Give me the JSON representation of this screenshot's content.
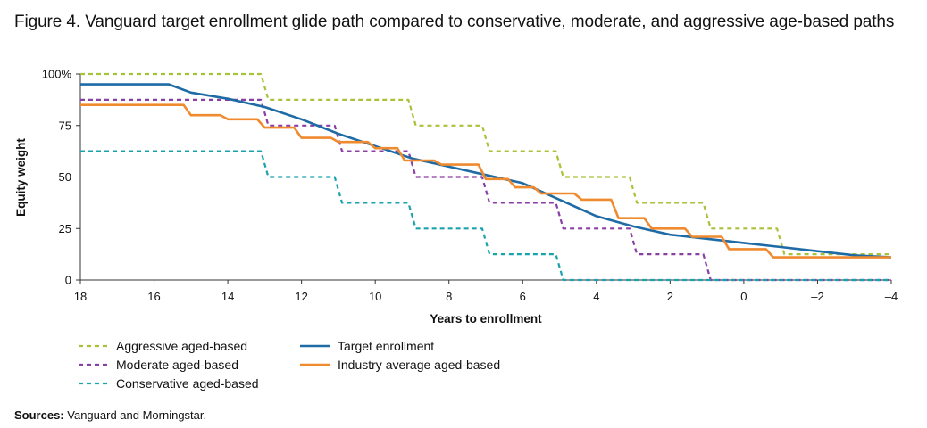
{
  "title": "Figure 4. Vanguard target enrollment glide path compared to conservative, moderate, and aggressive age-based paths",
  "sources": {
    "label": "Sources:",
    "text": " Vanguard and Morningstar."
  },
  "chart_data": {
    "type": "line",
    "xlabel": "Years to enrollment",
    "ylabel": "Equity weight",
    "xlim": [
      18,
      -4
    ],
    "ylim": [
      0,
      100
    ],
    "x_ticks": [
      18,
      16,
      14,
      12,
      10,
      8,
      6,
      4,
      2,
      0,
      -2,
      -4
    ],
    "x_tick_labels": [
      "18",
      "16",
      "14",
      "12",
      "10",
      "8",
      "6",
      "4",
      "2",
      "0",
      "–2",
      "–4"
    ],
    "y_ticks": [
      0,
      25,
      50,
      75,
      100
    ],
    "y_tick_labels": [
      "0",
      "25",
      "50",
      "75",
      "100%"
    ],
    "series": [
      {
        "name": "Aggressive aged-based",
        "color": "#a8c23a",
        "style": "dashed",
        "x": [
          18,
          13.1,
          12.9,
          9.1,
          8.9,
          7.1,
          6.9,
          5.1,
          4.9,
          3.1,
          2.9,
          1.1,
          0.9,
          -0.9,
          -1.1,
          -4
        ],
        "y": [
          100,
          100,
          87.5,
          87.5,
          75,
          75,
          62.5,
          62.5,
          50,
          50,
          37.5,
          37.5,
          25,
          25,
          12.5,
          12.5
        ]
      },
      {
        "name": "Moderate aged-based",
        "color": "#8a3fa5",
        "style": "dashed",
        "x": [
          18,
          13.1,
          12.9,
          11.1,
          10.9,
          9.1,
          8.9,
          7.1,
          6.9,
          5.1,
          4.9,
          3.1,
          2.9,
          1.1,
          0.9,
          -4
        ],
        "y": [
          87.5,
          87.5,
          75,
          75,
          62.5,
          62.5,
          50,
          50,
          37.5,
          37.5,
          25,
          25,
          12.5,
          12.5,
          0,
          0
        ]
      },
      {
        "name": "Conservative aged-based",
        "color": "#1ba3ad",
        "style": "dashed",
        "x": [
          18,
          13.1,
          12.9,
          11.1,
          10.9,
          9.1,
          8.9,
          7.1,
          6.9,
          5.1,
          4.9,
          -4
        ],
        "y": [
          62.5,
          62.5,
          50,
          50,
          37.5,
          37.5,
          25,
          25,
          12.5,
          12.5,
          0,
          0
        ]
      },
      {
        "name": "Target enrollment",
        "color": "#1f6ba5",
        "style": "solid",
        "x": [
          18,
          15.6,
          15,
          14,
          13,
          12,
          11,
          10,
          9,
          8,
          7,
          6,
          5,
          4,
          3,
          2,
          1,
          0,
          -1,
          -2,
          -3,
          -4
        ],
        "y": [
          95,
          95,
          91,
          88,
          84,
          78,
          71,
          65,
          59,
          55,
          51,
          47,
          39,
          31,
          26,
          22,
          20,
          18,
          16,
          14,
          12,
          11
        ]
      },
      {
        "name": "Industry average aged-based",
        "color": "#ef8a2e",
        "style": "solid",
        "x": [
          18,
          15.2,
          15.0,
          14.2,
          14.0,
          13.2,
          13.0,
          12.2,
          12.0,
          11.2,
          11.0,
          10.2,
          10.0,
          9.4,
          9.2,
          8.4,
          8.2,
          7.2,
          7.0,
          6.4,
          6.2,
          5.7,
          5.5,
          4.6,
          4.4,
          3.6,
          3.4,
          2.7,
          2.5,
          1.6,
          1.4,
          0.6,
          0.4,
          -0.6,
          -0.8,
          -4
        ],
        "y": [
          85,
          85,
          80,
          80,
          78,
          78,
          74,
          74,
          69,
          69,
          67,
          67,
          64,
          64,
          58,
          58,
          56,
          56,
          49,
          49,
          45,
          45,
          42,
          42,
          39,
          39,
          30,
          30,
          25,
          25,
          21,
          21,
          15,
          15,
          11,
          11
        ]
      }
    ]
  }
}
